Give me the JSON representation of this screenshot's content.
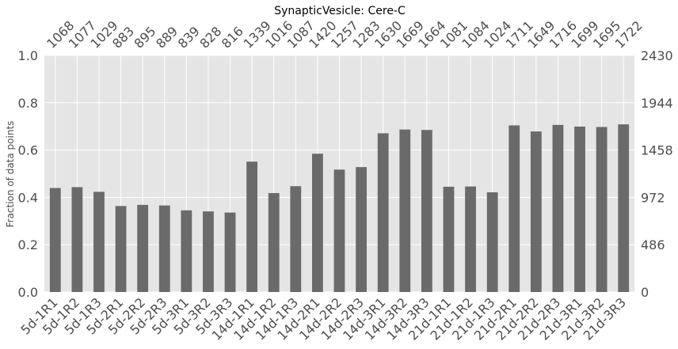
{
  "chart_data": {
    "type": "bar",
    "title": "SynapticVesicle: Cere-C",
    "ylabel": "Fraction of data points",
    "ylim": [
      0,
      1.0
    ],
    "yticks": [
      "0.0",
      "0.2",
      "0.4",
      "0.6",
      "0.8",
      "1.0"
    ],
    "right_axis_ticks": [
      "0",
      "486",
      "972",
      "1458",
      "1944",
      "2430"
    ],
    "right_axis_max": 2430,
    "categories": [
      "5d-1R1",
      "5d-1R2",
      "5d-1R3",
      "5d-2R1",
      "5d-2R2",
      "5d-2R3",
      "5d-3R1",
      "5d-3R2",
      "5d-3R3",
      "14d-1R1",
      "14d-1R2",
      "14d-1R3",
      "14d-2R1",
      "14d-2R2",
      "14d-2R3",
      "14d-3R1",
      "14d-3R2",
      "14d-3R3",
      "21d-1R1",
      "21d-1R2",
      "21d-1R3",
      "21d-2R1",
      "21d-2R2",
      "21d-2R3",
      "21d-3R1",
      "21d-3R2",
      "21d-3R3"
    ],
    "counts": [
      1068,
      1077,
      1029,
      883,
      895,
      889,
      839,
      828,
      816,
      1339,
      1016,
      1087,
      1420,
      1257,
      1283,
      1630,
      1669,
      1664,
      1081,
      1084,
      1024,
      1711,
      1649,
      1716,
      1699,
      1695,
      1722
    ],
    "values": [
      0.4395,
      0.4432,
      0.4235,
      0.3634,
      0.3683,
      0.3658,
      0.3453,
      0.3407,
      0.3358,
      0.551,
      0.4181,
      0.4473,
      0.5844,
      0.5173,
      0.528,
      0.6708,
      0.6868,
      0.6848,
      0.4449,
      0.4461,
      0.4214,
      0.7041,
      0.6786,
      0.7062,
      0.6992,
      0.6975,
      0.7086
    ],
    "grid": true,
    "colors": {
      "bar": "#6a6a6a",
      "plot_bg": "#e5e5e5",
      "grid": "#ffffff"
    }
  }
}
